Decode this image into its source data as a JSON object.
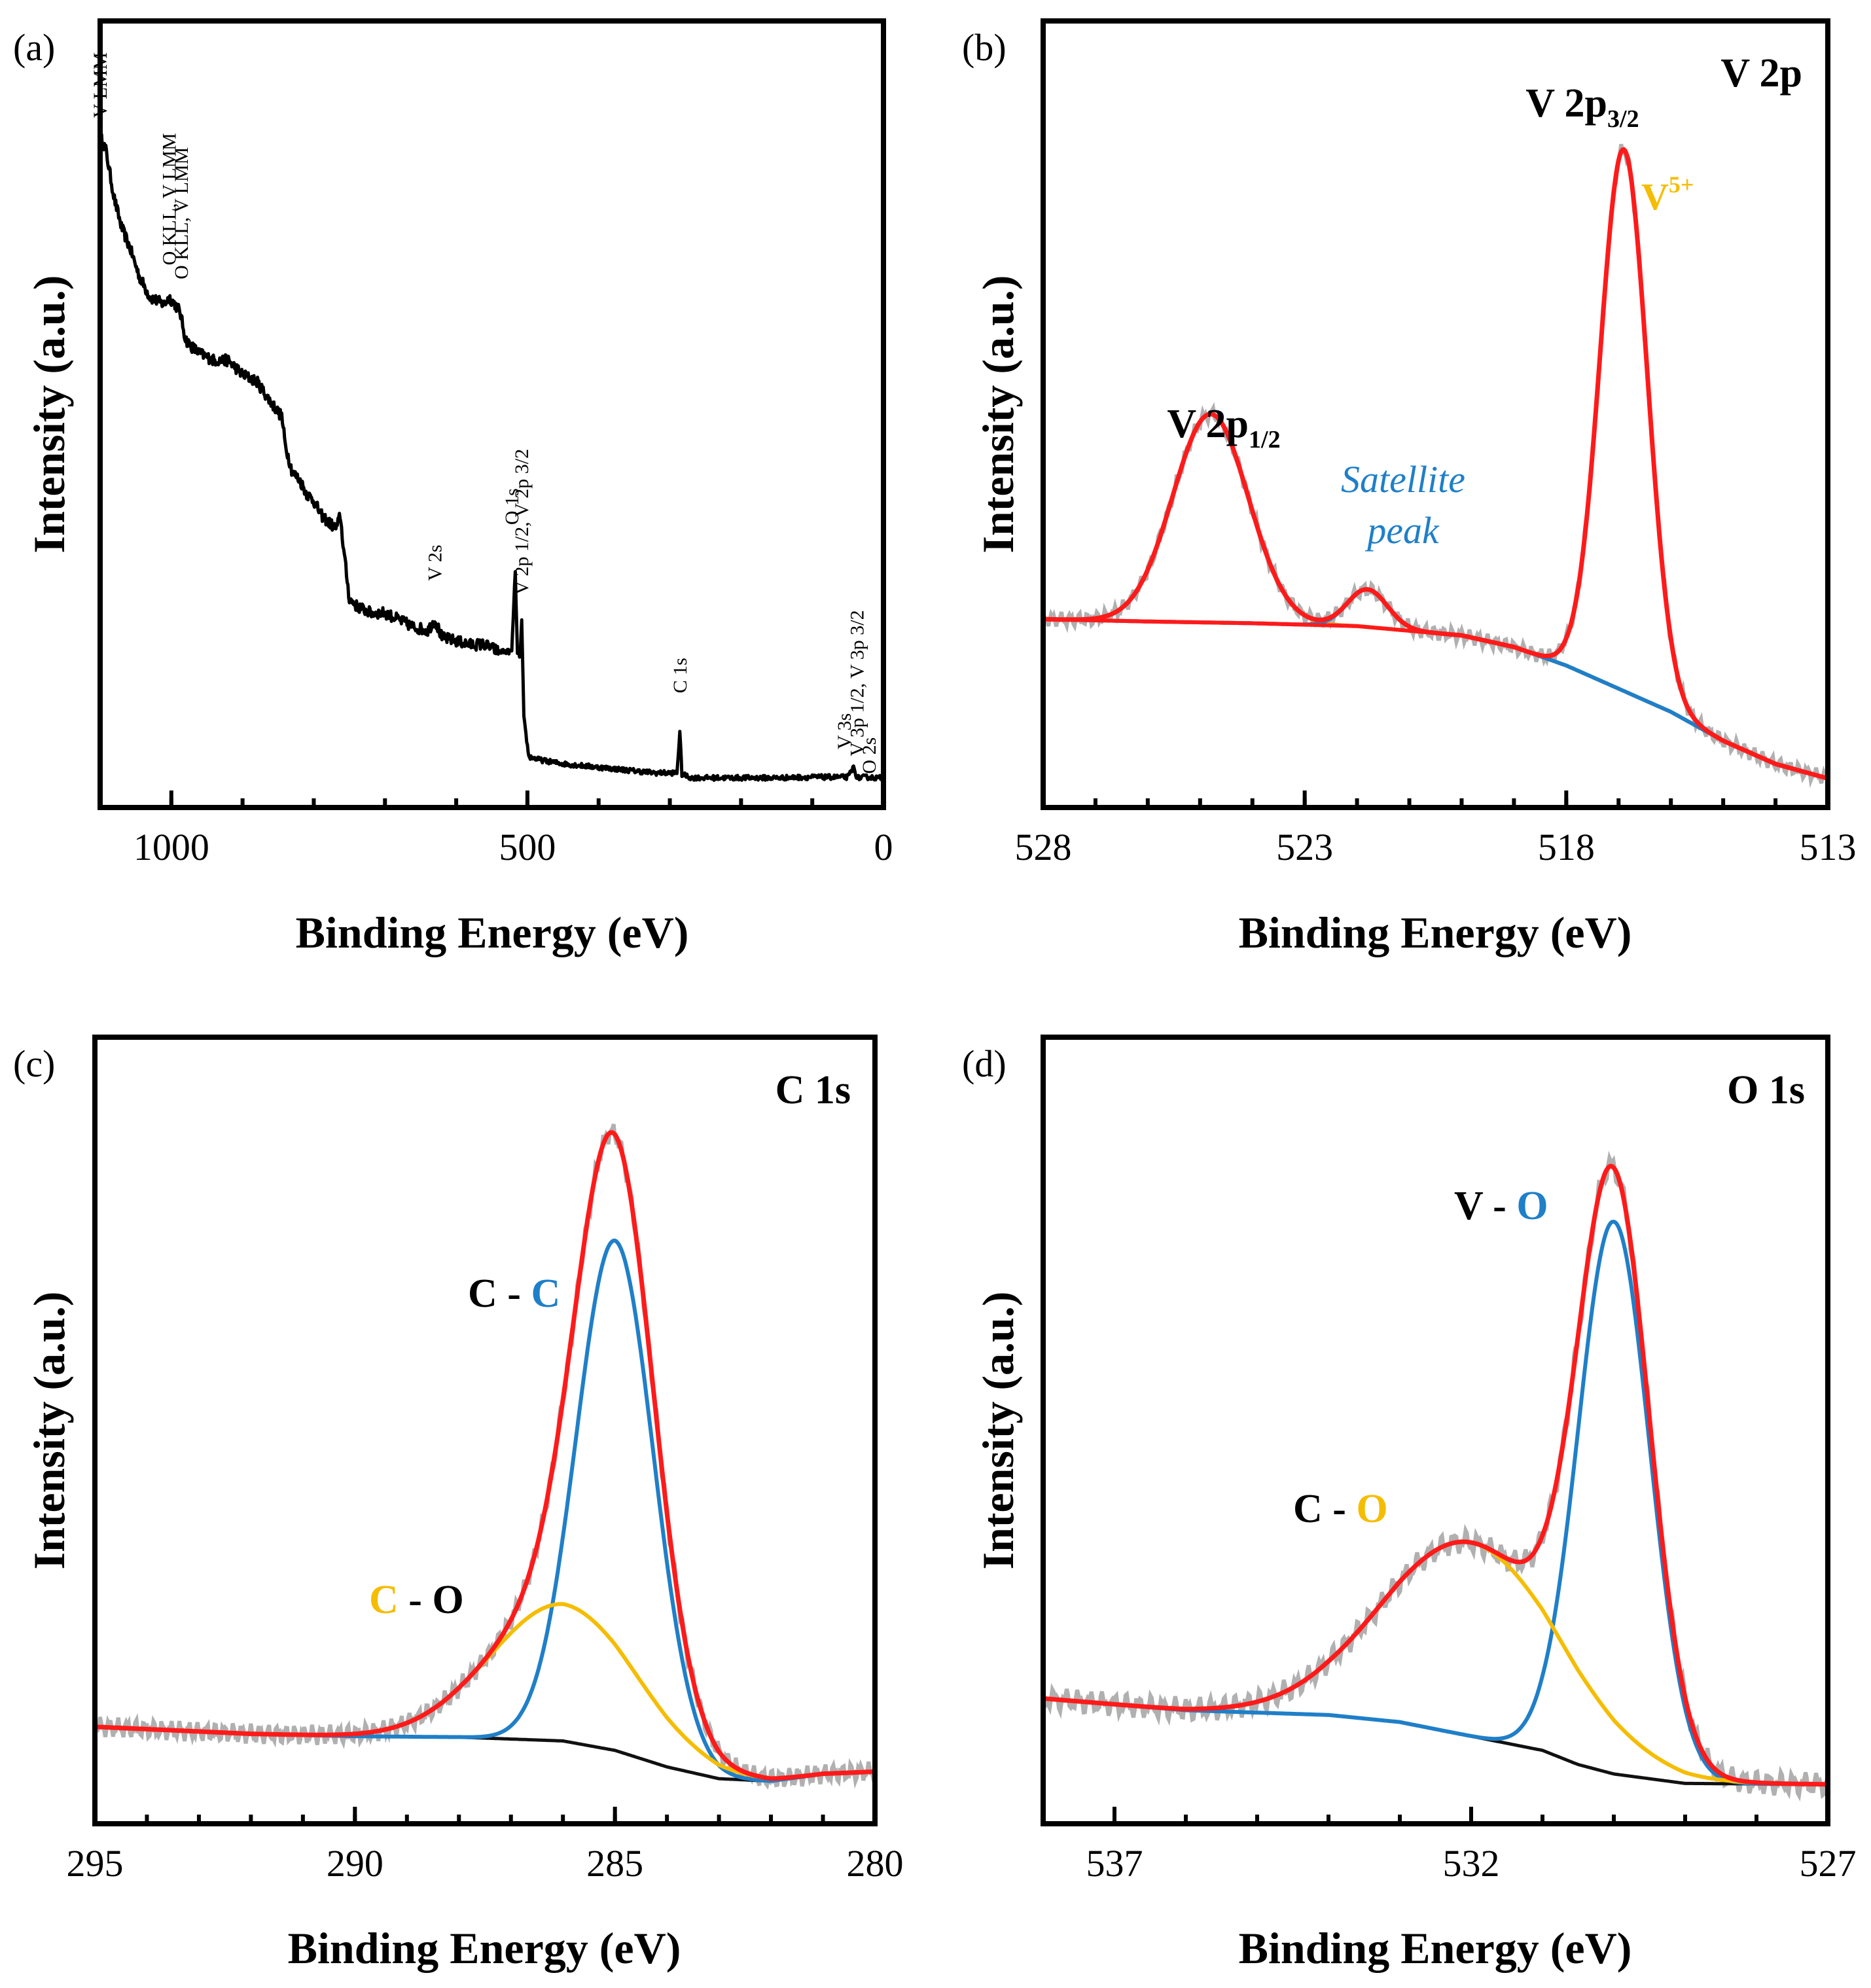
{
  "colors": {
    "frame": "#000000",
    "raw": "#b0b0b0",
    "envelope": "#ff1a1a",
    "background_fit": "#111111",
    "blue": "#1f7fc8",
    "gold": "#f5bd00",
    "orange": "#f39a30"
  },
  "chart_data": [
    {
      "id": "a",
      "type": "line",
      "panel_label": "(a)",
      "title": "",
      "xlabel": "Binding Energy (eV)",
      "ylabel": "Intensity (a.u.)",
      "xlim": [
        1100,
        0
      ],
      "ylim": [
        0,
        100
      ],
      "x_ticks": [
        1000,
        500,
        0
      ],
      "x_tick_labels": [
        "1000",
        "500",
        "0"
      ],
      "series": [
        {
          "name": "Survey spectrum",
          "color_key": "frame",
          "points": [
            [
              1100,
              92
            ],
            [
              1092,
              90
            ],
            [
              1080,
              83
            ],
            [
              1070,
              79
            ],
            [
              1058,
              76
            ],
            [
              1045,
              72
            ],
            [
              1030,
              69
            ],
            [
              1010,
              68
            ],
            [
              1003,
              69
            ],
            [
              995,
              68
            ],
            [
              988,
              67
            ],
            [
              980,
              63
            ],
            [
              972,
              62
            ],
            [
              960,
              61
            ],
            [
              940,
              60
            ],
            [
              920,
              60
            ],
            [
              900,
              58
            ],
            [
              880,
              57
            ],
            [
              860,
              54
            ],
            [
              845,
              52
            ],
            [
              840,
              48
            ],
            [
              830,
              44
            ],
            [
              820,
              43
            ],
            [
              810,
              41
            ],
            [
              800,
              40
            ],
            [
              790,
              38
            ],
            [
              780,
              37
            ],
            [
              768,
              36
            ],
            [
              763,
              38
            ],
            [
              758,
              33
            ],
            [
              750,
              26
            ],
            [
              740,
              25
            ],
            [
              720,
              24
            ],
            [
              700,
              24
            ],
            [
              680,
              23
            ],
            [
              660,
              22
            ],
            [
              640,
              21.5
            ],
            [
              630,
              23
            ],
            [
              620,
              20.5
            ],
            [
              600,
              20
            ],
            [
              580,
              19.5
            ],
            [
              560,
              19.5
            ],
            [
              540,
              18.5
            ],
            [
              522,
              18.5
            ],
            [
              517,
              30
            ],
            [
              514,
              18
            ],
            [
              510,
              18
            ],
            [
              508,
              23
            ],
            [
              505,
              9
            ],
            [
              498,
              3.5
            ],
            [
              480,
              3
            ],
            [
              450,
              2.5
            ],
            [
              420,
              2.2
            ],
            [
              400,
              2
            ],
            [
              380,
              1.8
            ],
            [
              350,
              1.5
            ],
            [
              320,
              1.2
            ],
            [
              290,
              1.2
            ],
            [
              286,
              7
            ],
            [
              283,
              1
            ],
            [
              270,
              0.5
            ],
            [
              250,
              0.5
            ],
            [
              200,
              0.5
            ],
            [
              150,
              0.5
            ],
            [
              100,
              0.6
            ],
            [
              70,
              0.6
            ],
            [
              50,
              0.6
            ],
            [
              42,
              2
            ],
            [
              37,
              0.5
            ],
            [
              25,
              0.6
            ],
            [
              10,
              0.5
            ],
            [
              0,
              0.5
            ]
          ]
        }
      ],
      "annotations": [
        {
          "text": "V LMM",
          "x": 1100,
          "y": 94
        },
        {
          "text": "O KLL, V LMM",
          "x": 1003,
          "y": 73
        },
        {
          "text": "O KLL, V LMM",
          "x": 986,
          "y": 71
        },
        {
          "text": "V 2s",
          "x": 630,
          "y": 28
        },
        {
          "text": "O 1s",
          "x": 522,
          "y": 36
        },
        {
          "text": "V 2p 1/2, V 2p 3/2",
          "x": 508,
          "y": 26
        },
        {
          "text": "C 1s",
          "x": 286,
          "y": 12
        },
        {
          "text": "V 3s",
          "x": 55,
          "y": 4
        },
        {
          "text": "V 3p 1/2, V 3p 3/2",
          "x": 37,
          "y": 3
        },
        {
          "text": "O 2s",
          "x": 20,
          "y": 0.5
        }
      ]
    },
    {
      "id": "b",
      "type": "line",
      "panel_label": "(b)",
      "title": "V 2p",
      "xlabel": "Binding Energy (eV)",
      "ylabel": "Intensity (a.u.)",
      "xlim": [
        528,
        513
      ],
      "ylim": [
        -20,
        100
      ],
      "x_ticks": [
        528,
        523,
        518,
        513
      ],
      "x_tick_labels": [
        "528",
        "523",
        "518",
        "513"
      ],
      "background": {
        "points": [
          [
            528,
            8
          ],
          [
            526,
            7.6
          ],
          [
            524,
            7.3
          ],
          [
            522,
            6.8
          ],
          [
            520,
            5.2
          ],
          [
            519,
            3.2
          ],
          [
            518,
            0
          ],
          [
            517,
            -4
          ],
          [
            516,
            -8
          ],
          [
            515,
            -13
          ],
          [
            514,
            -17
          ],
          [
            513,
            -19.5
          ]
        ]
      },
      "series": [
        {
          "name": "Raw data",
          "color_key": "raw",
          "raw_of": "envelope",
          "noise": 0.6
        },
        {
          "name": "Envelope",
          "color_key": "envelope",
          "components": [
            0,
            1,
            2
          ]
        },
        {
          "name": "V 2p1/2",
          "color_key": "orange",
          "component": 0
        },
        {
          "name": "Satellite peak",
          "color_key": "blue",
          "component": 1
        },
        {
          "name": "V 2p3/2 (V5+)",
          "color_key": "envelope",
          "component": 2
        }
      ],
      "components": [
        {
          "center": 524.8,
          "height": 36,
          "sigma": 0.72
        },
        {
          "center": 521.8,
          "height": 6.5,
          "sigma": 0.38
        },
        {
          "center": 516.9,
          "height": 93.5,
          "sigma": 0.45
        }
      ],
      "peak_labels": [
        {
          "main": "V 2p",
          "sub": "1/2",
          "color_key": "frame"
        },
        {
          "main": "V 2p",
          "sub": "3/2",
          "color_key": "frame"
        }
      ],
      "species_label": {
        "main": "V",
        "sup": "5+",
        "color_key": "gold"
      },
      "satellite_label": [
        "Satellite",
        "peak"
      ]
    },
    {
      "id": "c",
      "type": "line",
      "panel_label": "(c)",
      "title": "C 1s",
      "xlabel": "Binding Energy (eV)",
      "ylabel": "Intensity (a.u.)",
      "xlim": [
        295,
        280
      ],
      "ylim": [
        -10,
        140
      ],
      "x_ticks": [
        295,
        290,
        285,
        280
      ],
      "x_tick_labels": [
        "295",
        "290",
        "285",
        "280"
      ],
      "background": {
        "points": [
          [
            295,
            5
          ],
          [
            292,
            3.5
          ],
          [
            290,
            3
          ],
          [
            288,
            2.8
          ],
          [
            286,
            2
          ],
          [
            285,
            0
          ],
          [
            284,
            -3.5
          ],
          [
            283,
            -6
          ],
          [
            282,
            -6.5
          ],
          [
            281,
            -5
          ],
          [
            280,
            -4.5
          ]
        ]
      },
      "series": [
        {
          "name": "Raw data",
          "color_key": "raw",
          "raw_of": "envelope",
          "noise": 1.0
        },
        {
          "name": "Envelope",
          "color_key": "envelope",
          "components": [
            0,
            1
          ]
        },
        {
          "name": "C - C",
          "color_key": "blue",
          "component": 0
        },
        {
          "name": "C - O",
          "color_key": "gold",
          "component": 1
        }
      ],
      "components": [
        {
          "center": 285.0,
          "height": 108,
          "sigma": 0.74
        },
        {
          "center": 286.0,
          "height": 29,
          "sigma": 1.4
        }
      ],
      "peak_labels": [
        {
          "left": "C",
          "sep": " - ",
          "right": "C",
          "left_color_key": "frame",
          "right_color_key": "blue"
        },
        {
          "left": "C",
          "sep": " - ",
          "right": "O",
          "left_color_key": "gold",
          "right_color_key": "frame"
        }
      ]
    },
    {
      "id": "d",
      "type": "line",
      "panel_label": "(d)",
      "title": "O 1s",
      "xlabel": "Binding Energy (eV)",
      "ylabel": "Intensity (a.u.)",
      "xlim": [
        538,
        527
      ],
      "ylim": [
        -10,
        140
      ],
      "x_ticks": [
        537,
        532,
        527
      ],
      "x_tick_labels": [
        "537",
        "532",
        "527"
      ],
      "background": {
        "points": [
          [
            538,
            11
          ],
          [
            536,
            8.5
          ],
          [
            535,
            8
          ],
          [
            534,
            7.5
          ],
          [
            533,
            6
          ],
          [
            532,
            3
          ],
          [
            531,
            0
          ],
          [
            530.5,
            -3
          ],
          [
            530,
            -5
          ],
          [
            529,
            -7
          ],
          [
            527,
            -7.2
          ]
        ]
      },
      "series": [
        {
          "name": "Raw data",
          "color_key": "raw",
          "raw_of": "envelope",
          "noise": 1.2
        },
        {
          "name": "Envelope",
          "color_key": "envelope",
          "components": [
            0,
            1
          ]
        },
        {
          "name": "V - O",
          "color_key": "blue",
          "component": 0
        },
        {
          "name": "C - O",
          "color_key": "gold",
          "component": 1
        }
      ],
      "components": [
        {
          "center": 530.0,
          "height": 117,
          "sigma": 0.5
        },
        {
          "center": 532.0,
          "height": 41,
          "sigma": 1.25
        }
      ],
      "peak_labels": [
        {
          "left": "V",
          "sep": " - ",
          "right": "O",
          "left_color_key": "frame",
          "right_color_key": "blue"
        },
        {
          "left": "C",
          "sep": " - ",
          "right": "O",
          "left_color_key": "frame",
          "right_color_key": "gold"
        }
      ]
    }
  ]
}
